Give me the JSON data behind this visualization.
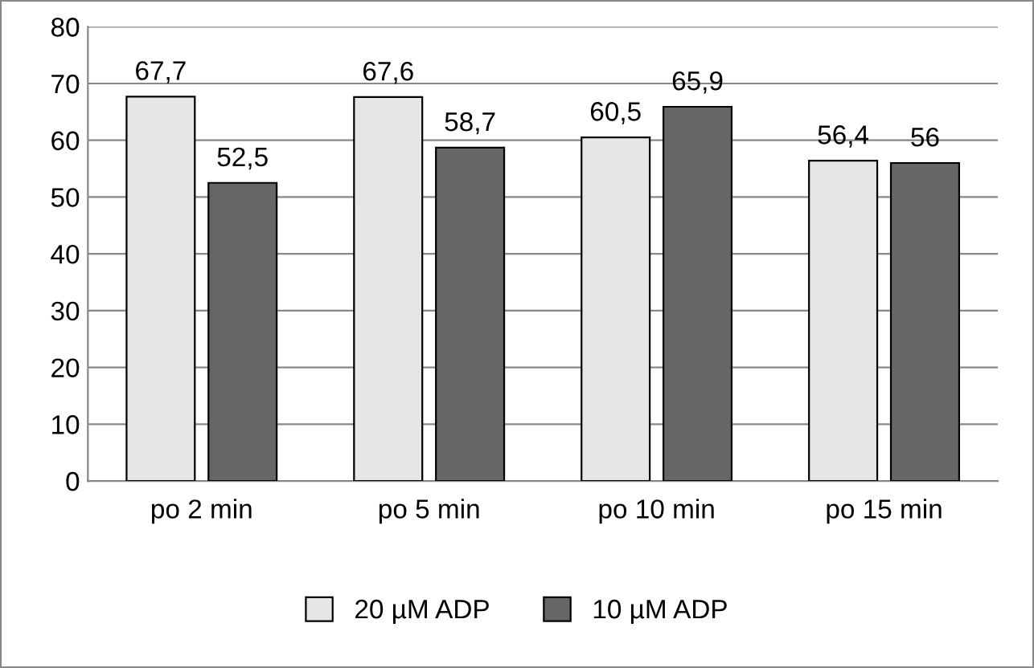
{
  "chart_data": {
    "type": "bar",
    "categories": [
      "po 2 min",
      "po 5 min",
      "po 10 min",
      "po 15 min"
    ],
    "series": [
      {
        "name": "20 µM ADP",
        "color": "#e6e6e6",
        "values": [
          67.7,
          67.6,
          60.5,
          56.4
        ],
        "value_labels": [
          "67,7",
          "67,6",
          "60,5",
          "56,4"
        ]
      },
      {
        "name": "10 µM ADP",
        "color": "#666666",
        "values": [
          52.5,
          58.7,
          65.9,
          56
        ],
        "value_labels": [
          "52,5",
          "58,7",
          "65,9",
          "56"
        ]
      }
    ],
    "ylim": [
      0,
      80
    ],
    "yticks": [
      0,
      10,
      20,
      30,
      40,
      50,
      60,
      70,
      80
    ],
    "grid": "y",
    "legend": "bottom"
  }
}
